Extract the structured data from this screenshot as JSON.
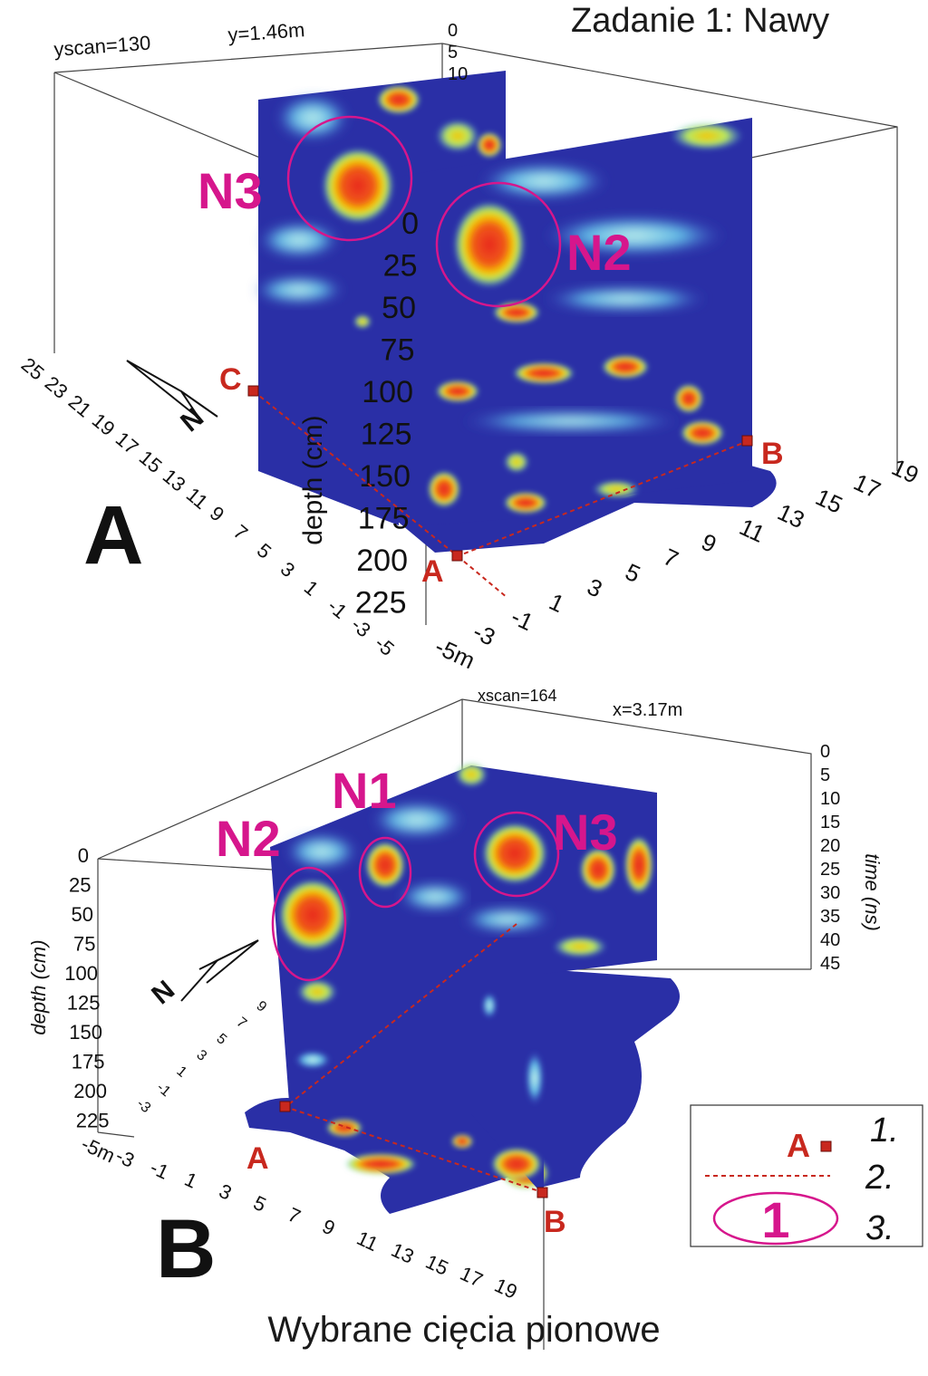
{
  "title": "Zadanie 1: Nawy",
  "caption": "Wybrane cięcia pionowe",
  "colors": {
    "background_low": "#2a2fa6",
    "low_mid": "#4aa8e0",
    "mid": "#9fe3d8",
    "mid_high": "#d8f05a",
    "high": "#f5c400",
    "peak": "#e8281e",
    "annotation": "#d6168c",
    "marker": "#c8281e",
    "axis": "#222222"
  },
  "panel_a": {
    "label": "A",
    "scan_label": "yscan=130",
    "position_label": "y=1.46m",
    "depth_axis_title": "depth (cm)",
    "depth_ticks": [
      "0",
      "25",
      "50",
      "75",
      "100",
      "125",
      "150",
      "175",
      "200",
      "225"
    ],
    "time_ticks": [
      "0",
      "5",
      "10"
    ],
    "x_ticks": [
      "-5m",
      "-3",
      "-1",
      "1",
      "3",
      "5",
      "7",
      "9",
      "11",
      "13",
      "15",
      "17",
      "19"
    ],
    "y_ticks": [
      "-5",
      "-3",
      "-1",
      "1",
      "3",
      "5",
      "7",
      "9",
      "11",
      "13",
      "15",
      "17",
      "19",
      "21",
      "23",
      "25"
    ],
    "north": "N",
    "annotations": [
      "N3",
      "N2"
    ],
    "points": [
      "C",
      "A",
      "B"
    ]
  },
  "panel_b": {
    "label": "B",
    "scan_label": "xscan=164",
    "position_label": "x=3.17m",
    "depth_axis_title": "depth (cm)",
    "time_axis_title": "time (ns)",
    "depth_ticks": [
      "0",
      "25",
      "50",
      "75",
      "100",
      "125",
      "150",
      "175",
      "200",
      "225"
    ],
    "time_ticks": [
      "0",
      "5",
      "10",
      "15",
      "20",
      "25",
      "30",
      "35",
      "40",
      "45"
    ],
    "x_ticks": [
      "-5m",
      "-3",
      "-1",
      "1",
      "3",
      "5",
      "7",
      "9",
      "11",
      "13",
      "15",
      "17",
      "19"
    ],
    "y_ticks": [
      "-3",
      "-1",
      "1",
      "3",
      "5",
      "7",
      "9"
    ],
    "north": "N",
    "annotations": [
      "N2",
      "N1",
      "N3"
    ],
    "points": [
      "A",
      "B"
    ]
  },
  "legend": {
    "marker_letter": "A",
    "oval_number": "1",
    "items": [
      "1.",
      "2.",
      "3."
    ]
  }
}
